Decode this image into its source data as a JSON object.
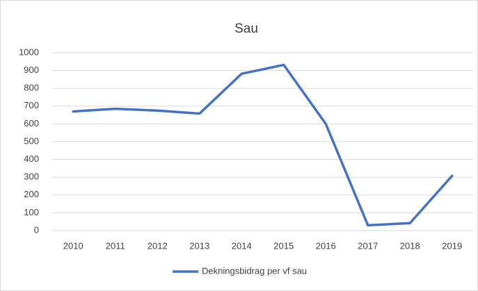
{
  "chart_data": {
    "type": "line",
    "title": "Sau",
    "categories": [
      "2010",
      "2011",
      "2012",
      "2013",
      "2014",
      "2015",
      "2016",
      "2017",
      "2018",
      "2019"
    ],
    "series": [
      {
        "name": "Dekningsbidrag per vf sau",
        "color": "#4472c4",
        "values": [
          670,
          685,
          675,
          658,
          882,
          932,
          600,
          30,
          42,
          308
        ]
      }
    ],
    "ylim": [
      0,
      1000
    ],
    "yticks": [
      0,
      100,
      200,
      300,
      400,
      500,
      600,
      700,
      800,
      900,
      1000
    ],
    "grid": true,
    "legend": "bottom"
  }
}
